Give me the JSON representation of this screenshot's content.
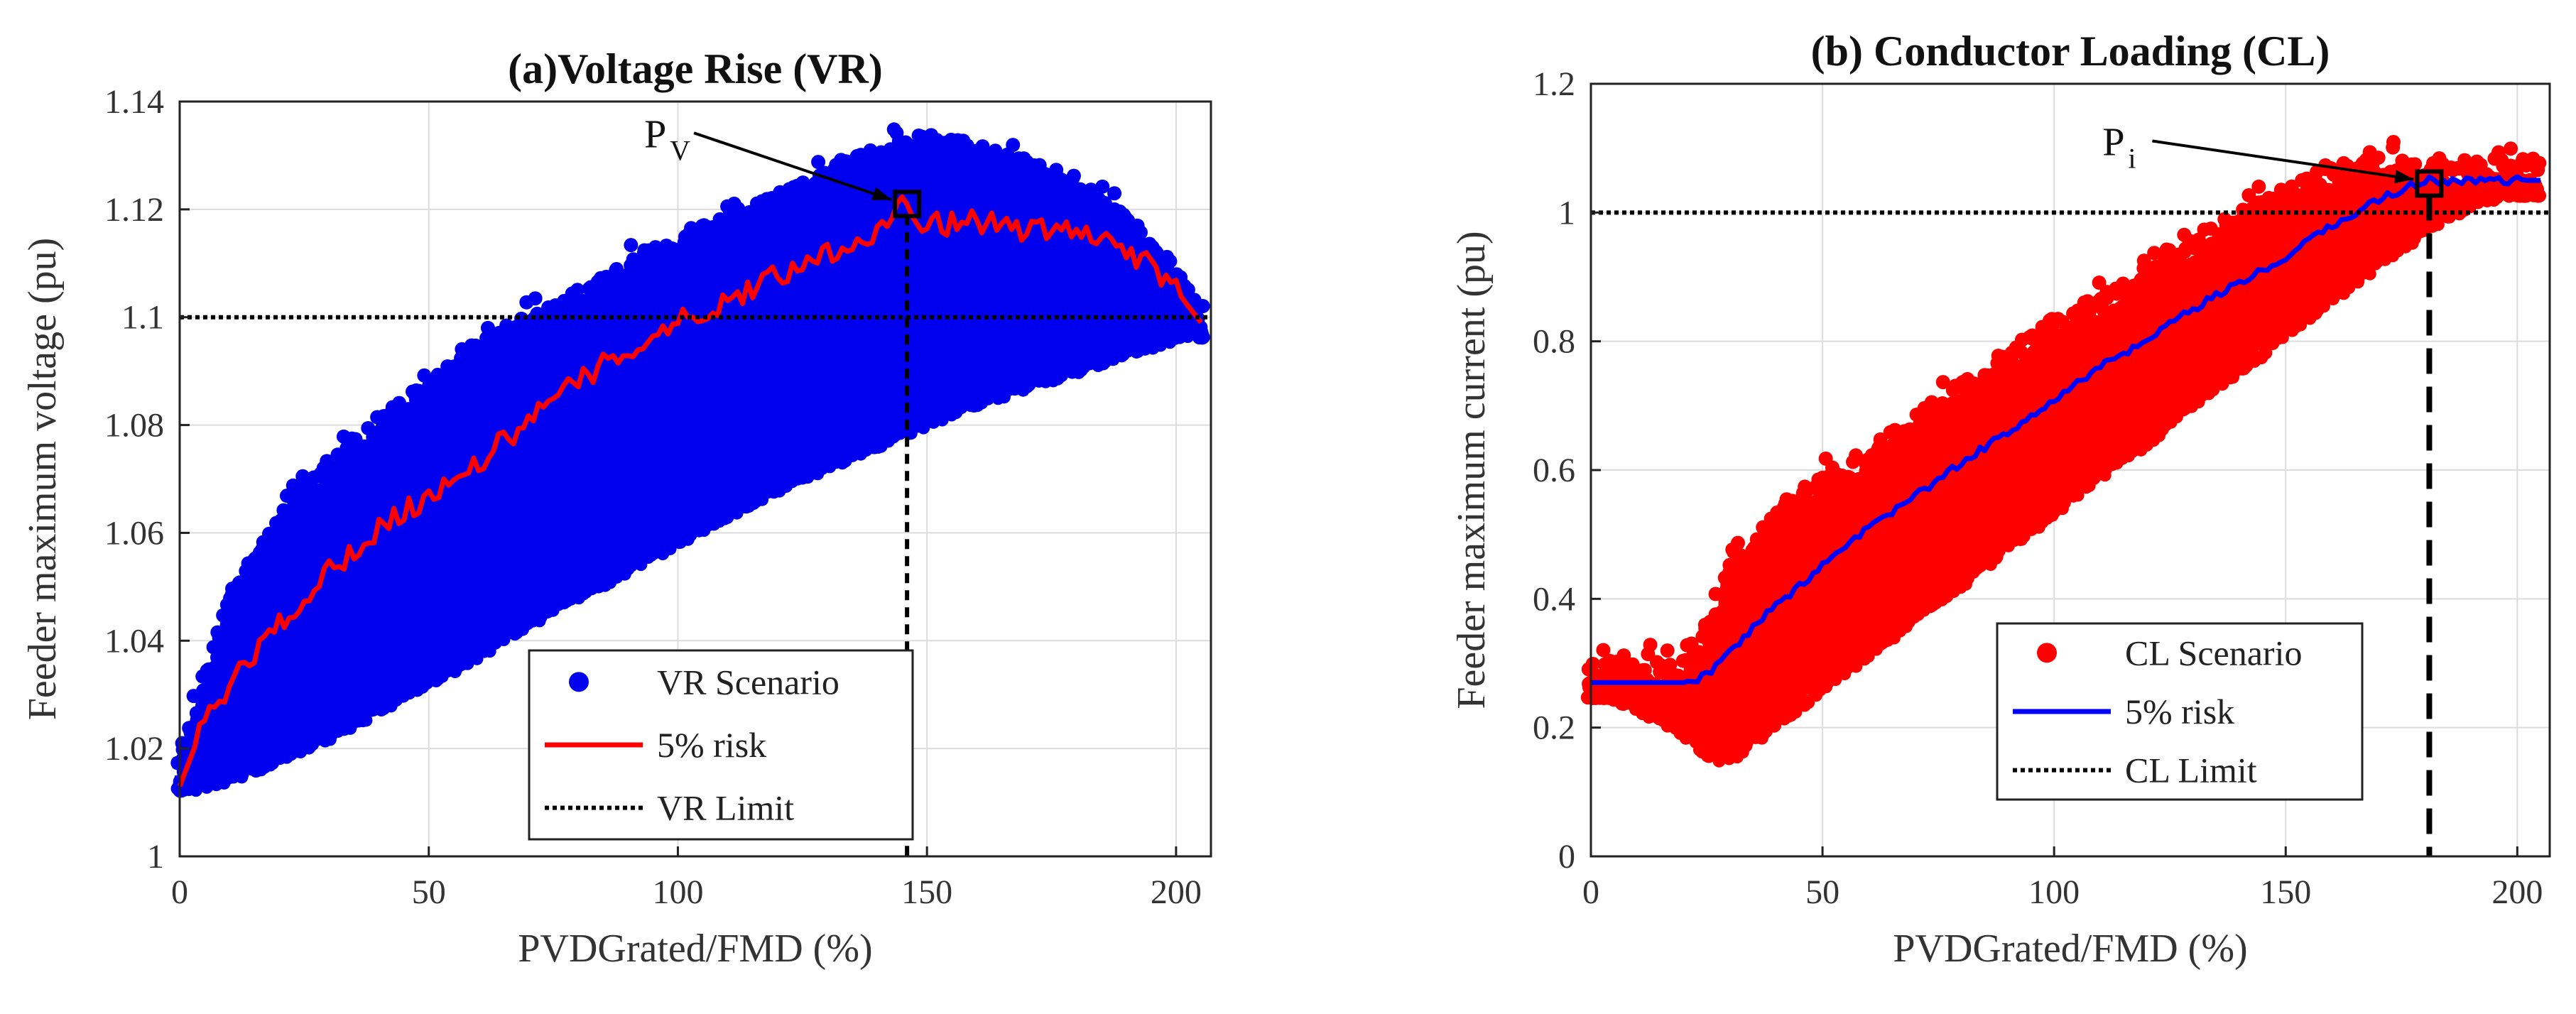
{
  "chart_data": [
    {
      "type": "scatter",
      "title": "(a)Voltage Rise (VR)",
      "xlabel": "PVDGrated/FMD (%)",
      "ylabel": "Feeder maximum voltage (pu)",
      "xlim": [
        0,
        207
      ],
      "ylim": [
        1.0,
        1.14
      ],
      "xticks": [
        0,
        50,
        100,
        150,
        200
      ],
      "yticks": [
        1.0,
        1.02,
        1.04,
        1.06,
        1.08,
        1.1,
        1.12,
        1.14
      ],
      "ytick_labels": [
        "1",
        "1.02",
        "1.04",
        "1.06",
        "1.08",
        "1.1",
        "1.12",
        "1.14"
      ],
      "grid": true,
      "legend_position": "bottom-right",
      "scatter_color": "#0000ee",
      "risk_color": "#ff0000",
      "limit_color": "#000000",
      "scatter_envelope": {
        "x": [
          0,
          10,
          20,
          30,
          40,
          50,
          60,
          70,
          80,
          90,
          100,
          110,
          120,
          130,
          140,
          150,
          160,
          170,
          180,
          190,
          200,
          205
        ],
        "upper": [
          1.015,
          1.045,
          1.06,
          1.07,
          1.078,
          1.085,
          1.092,
          1.097,
          1.102,
          1.107,
          1.112,
          1.116,
          1.12,
          1.124,
          1.128,
          1.131,
          1.129,
          1.126,
          1.122,
          1.116,
          1.106,
          1.099
        ],
        "lower": [
          1.013,
          1.015,
          1.019,
          1.023,
          1.028,
          1.033,
          1.038,
          1.044,
          1.049,
          1.054,
          1.059,
          1.064,
          1.069,
          1.073,
          1.077,
          1.081,
          1.085,
          1.088,
          1.091,
          1.094,
          1.097,
          1.099
        ]
      },
      "series": [
        {
          "name": "VR Scenario",
          "style": "markers"
        },
        {
          "name": "5% risk",
          "style": "line",
          "x": [
            0,
            5,
            10,
            20,
            30,
            40,
            50,
            60,
            70,
            80,
            90,
            100,
            110,
            120,
            130,
            140,
            145,
            150,
            160,
            170,
            180,
            190,
            200,
            205
          ],
          "y": [
            1.013,
            1.025,
            1.032,
            1.043,
            1.053,
            1.061,
            1.067,
            1.073,
            1.081,
            1.088,
            1.094,
            1.099,
            1.103,
            1.108,
            1.112,
            1.116,
            1.121,
            1.117,
            1.118,
            1.116,
            1.116,
            1.113,
            1.105,
            1.099
          ]
        },
        {
          "name": "VR Limit",
          "style": "dotted",
          "y": 1.1
        }
      ],
      "annotation": {
        "label_main": "P",
        "label_sub": "V",
        "x": 146,
        "y": 1.121
      }
    },
    {
      "type": "scatter",
      "title": "(b) Conductor Loading (CL)",
      "xlabel": "PVDGrated/FMD (%)",
      "ylabel": "Feeder maximum current (pu)",
      "xlim": [
        0,
        207
      ],
      "ylim": [
        0,
        1.2
      ],
      "xticks": [
        0,
        50,
        100,
        150,
        200
      ],
      "yticks": [
        0,
        0.2,
        0.4,
        0.6,
        0.8,
        1.0,
        1.2
      ],
      "ytick_labels": [
        "0",
        "0.2",
        "0.4",
        "0.6",
        "0.8",
        "1",
        "1.2"
      ],
      "grid": true,
      "legend_position": "center-right",
      "scatter_color": "#ff0000",
      "risk_color": "#0000ff",
      "limit_color": "#000000",
      "scatter_envelope": {
        "x": [
          0,
          20,
          25,
          30,
          40,
          50,
          60,
          70,
          80,
          90,
          100,
          110,
          120,
          130,
          140,
          150,
          160,
          170,
          180,
          190,
          205
        ],
        "upper": [
          0.27,
          0.27,
          0.33,
          0.43,
          0.5,
          0.56,
          0.6,
          0.65,
          0.7,
          0.75,
          0.8,
          0.84,
          0.88,
          0.93,
          0.97,
          1.01,
          1.04,
          1.05,
          1.05,
          1.05,
          1.05
        ],
        "lower": [
          0.27,
          0.2,
          0.16,
          0.16,
          0.21,
          0.27,
          0.32,
          0.38,
          0.43,
          0.49,
          0.54,
          0.6,
          0.65,
          0.71,
          0.76,
          0.82,
          0.87,
          0.93,
          0.98,
          1.02,
          1.05
        ]
      },
      "series": [
        {
          "name": "CL Scenario",
          "style": "markers"
        },
        {
          "name": "5% risk",
          "style": "line",
          "x": [
            0,
            10,
            20,
            25,
            30,
            40,
            50,
            60,
            70,
            80,
            90,
            100,
            110,
            120,
            130,
            140,
            150,
            160,
            170,
            180,
            190,
            200,
            205
          ],
          "y": [
            0.27,
            0.27,
            0.27,
            0.28,
            0.32,
            0.39,
            0.45,
            0.51,
            0.56,
            0.61,
            0.66,
            0.71,
            0.76,
            0.8,
            0.85,
            0.89,
            0.93,
            0.98,
            1.02,
            1.05,
            1.05,
            1.05,
            1.05
          ]
        },
        {
          "name": "CL Limit",
          "style": "dotted",
          "y": 1.0
        }
      ],
      "annotation": {
        "label_main": "P",
        "label_sub": "i",
        "x": 181,
        "y": 1.045
      }
    }
  ]
}
